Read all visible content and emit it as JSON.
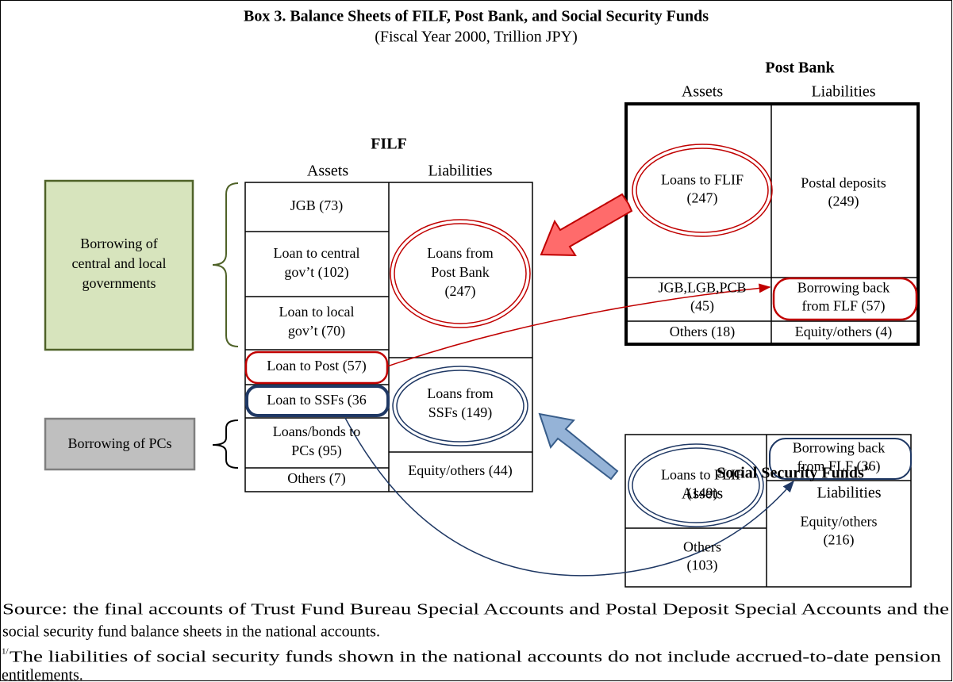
{
  "title": "Box 3. Balance Sheets of FILF, Post Bank, and Social Security Funds",
  "subtitle": "(Fiscal Year 2000, Trillion JPY)",
  "filf": {
    "name": "FILF",
    "headers": [
      "Assets",
      "Liabilities"
    ],
    "assets": [
      [
        "JGB (73)"
      ],
      [
        "Loan to central",
        "gov’t (102)"
      ],
      [
        "Loan to local",
        "gov’t (70)"
      ],
      [
        "Loan to Post (57)"
      ],
      [
        "Loan to SSFs (36"
      ],
      [
        "Loans/bonds to",
        "PCs (95)"
      ],
      [
        "Others (7)"
      ]
    ],
    "liabilities": [
      [
        "Loans from",
        "Post Bank",
        "(247)"
      ],
      [
        "Loans from",
        "SSFs (149)"
      ],
      [
        "Equity/others (44)"
      ]
    ]
  },
  "post_bank": {
    "name": "Post Bank",
    "headers": [
      "Assets",
      "Liabilities"
    ],
    "assets": [
      [
        "Loans to FLIF",
        "(247)"
      ],
      [
        "JGB,LGB,PCB",
        "(45)"
      ],
      [
        "Others (18)"
      ]
    ],
    "liabilities": [
      [
        "Postal deposits",
        "(249)"
      ],
      [
        "Borrowing back",
        "from FLF (57)"
      ],
      [
        "Equity/others (4)"
      ]
    ]
  },
  "social_security_funds": {
    "name": "Social Security Funds",
    "note": "1/",
    "headers": [
      "Assets",
      "Liabilities"
    ],
    "assets": [
      [
        "Loans to FLIF",
        "(149)"
      ],
      [
        "Others",
        "(103)"
      ]
    ],
    "liabilities": [
      [
        "Borrowing back",
        "from FLF (36)"
      ],
      [
        "Equity/others",
        "(216)"
      ]
    ]
  },
  "groups": [
    [
      "Borrowing of",
      "central and local",
      "governments"
    ],
    [
      "Borrowing of PCs"
    ]
  ],
  "source": [
    "Source: the final accounts of Trust Fund Bureau Special Accounts and Postal Deposit Special Accounts and the",
    "social security fund balance sheets in the national accounts."
  ],
  "footnote": {
    "mark": "1/",
    "lines": [
      "The liabilities of social security funds shown in the national accounts do not include accrued-to-date pension",
      "entitlements."
    ]
  }
}
